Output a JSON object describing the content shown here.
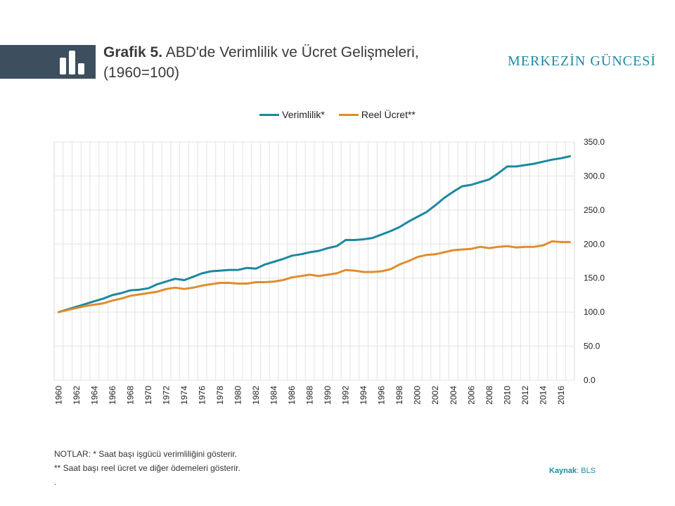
{
  "header": {
    "title_prefix": "Grafik 5.",
    "title_text": "ABD'de Verimlilik ve Ücret Gelişmeleri,",
    "title_line2": "(1960=100)",
    "brand": "MERKEZİN GÜNCESİ",
    "logo_icon": "bar-chart-icon",
    "logo_bg_color": "#3d4f5e"
  },
  "chart_data": {
    "type": "line",
    "x": [
      1960,
      1961,
      1962,
      1963,
      1964,
      1965,
      1966,
      1967,
      1968,
      1969,
      1970,
      1971,
      1972,
      1973,
      1974,
      1975,
      1976,
      1977,
      1978,
      1979,
      1980,
      1981,
      1982,
      1983,
      1984,
      1985,
      1986,
      1987,
      1988,
      1989,
      1990,
      1991,
      1992,
      1993,
      1994,
      1995,
      1996,
      1997,
      1998,
      1999,
      2000,
      2001,
      2002,
      2003,
      2004,
      2005,
      2006,
      2007,
      2008,
      2009,
      2010,
      2011,
      2012,
      2013,
      2014,
      2015,
      2016,
      2017
    ],
    "series": [
      {
        "name": "Verimlilik*",
        "color": "#1c88a0",
        "values": [
          100,
          104,
          108,
          112,
          116,
          120,
          125,
          128,
          132,
          133,
          135,
          141,
          145,
          149,
          147,
          152,
          157,
          160,
          161,
          162,
          162,
          165,
          164,
          170,
          174,
          178,
          183,
          185,
          188,
          190,
          194,
          197,
          206,
          206,
          207,
          209,
          214,
          219,
          225,
          233,
          240,
          247,
          257,
          268,
          277,
          285,
          287,
          291,
          295,
          304,
          314,
          314,
          316,
          318,
          321,
          324,
          326,
          329
        ]
      },
      {
        "name": "Reel Ücret**",
        "color": "#e08d2c",
        "values": [
          100,
          103,
          106,
          109,
          111,
          113,
          117,
          120,
          124,
          126,
          128,
          130,
          134,
          136,
          134,
          136,
          139,
          141,
          143,
          143,
          142,
          142,
          144,
          144,
          145,
          147,
          151,
          153,
          155,
          153,
          155,
          157,
          162,
          161,
          159,
          159,
          160,
          163,
          170,
          175,
          181,
          184,
          185,
          188,
          191,
          192,
          193,
          196,
          194,
          196,
          197,
          195,
          196,
          196,
          198,
          204,
          203,
          203
        ]
      }
    ],
    "x_tick_labels": [
      "1960",
      "1962",
      "1964",
      "1966",
      "1968",
      "1970",
      "1972",
      "1974",
      "1976",
      "1978",
      "1980",
      "1982",
      "1984",
      "1986",
      "1988",
      "1990",
      "1992",
      "1994",
      "1996",
      "1998",
      "2000",
      "2002",
      "2004",
      "2006",
      "2008",
      "2010",
      "2012",
      "2014",
      "2016"
    ],
    "y_tick_labels": [
      "0.0",
      "50.0",
      "100.0",
      "150.0",
      "200.0",
      "250.0",
      "300.0",
      "350.0"
    ],
    "ylim": [
      0,
      350
    ],
    "y_axis_side": "right",
    "grid": true,
    "legend_position": "top"
  },
  "notes": {
    "line1": "NOTLAR: * Saat başı işgücü verimliliğini gösterir.",
    "line2": "** Saat başı reel ücret ve diğer ödemeleri gösterir.",
    "line3": "."
  },
  "source": {
    "label": "Kaynak",
    "value": ": BLS"
  }
}
